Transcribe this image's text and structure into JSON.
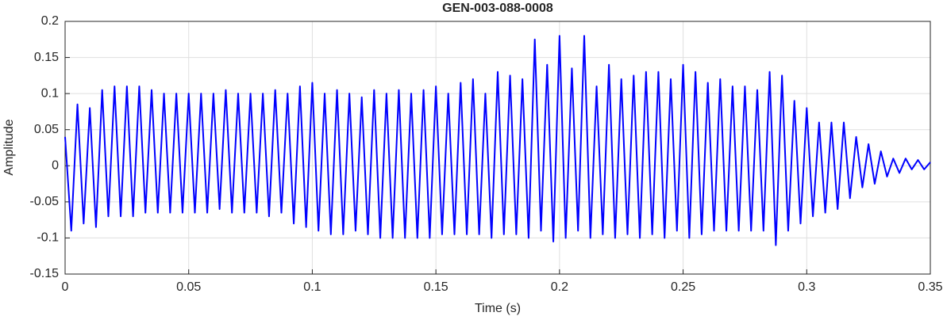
{
  "chart_data": {
    "type": "line",
    "title": "GEN-003-088-0008",
    "x_label": "Time (s)",
    "y_label": "Amplitude",
    "x": [
      0,
      0.0025,
      0.005,
      0.0075,
      0.01,
      0.0125,
      0.015,
      0.0175,
      0.02,
      0.0225,
      0.025,
      0.0275,
      0.03,
      0.0325,
      0.035,
      0.0375,
      0.04,
      0.0425,
      0.045,
      0.0475,
      0.05,
      0.0525,
      0.055,
      0.0575,
      0.06,
      0.0625,
      0.065,
      0.0675,
      0.07,
      0.0725,
      0.075,
      0.0775,
      0.08,
      0.0825,
      0.085,
      0.0875,
      0.09,
      0.0925,
      0.095,
      0.0975,
      0.1,
      0.1025,
      0.105,
      0.1075,
      0.11,
      0.1125,
      0.115,
      0.1175,
      0.12,
      0.1225,
      0.125,
      0.1275,
      0.13,
      0.1325,
      0.135,
      0.1375,
      0.14,
      0.1425,
      0.145,
      0.1475,
      0.15,
      0.1525,
      0.155,
      0.1575,
      0.16,
      0.1625,
      0.165,
      0.1675,
      0.17,
      0.1725,
      0.175,
      0.1775,
      0.18,
      0.1825,
      0.185,
      0.1875,
      0.19,
      0.1925,
      0.195,
      0.1975,
      0.2,
      0.2025,
      0.205,
      0.2075,
      0.21,
      0.2125,
      0.215,
      0.2175,
      0.22,
      0.2225,
      0.225,
      0.2275,
      0.23,
      0.2325,
      0.235,
      0.2375,
      0.24,
      0.2425,
      0.245,
      0.2475,
      0.25,
      0.2525,
      0.255,
      0.2575,
      0.26,
      0.2625,
      0.265,
      0.2675,
      0.27,
      0.2725,
      0.275,
      0.2775,
      0.28,
      0.2825,
      0.285,
      0.2875,
      0.29,
      0.2925,
      0.295,
      0.2975,
      0.3,
      0.3025,
      0.305,
      0.3075,
      0.31,
      0.3125,
      0.315,
      0.3175,
      0.32,
      0.3225,
      0.325,
      0.3275,
      0.33,
      0.3325,
      0.335,
      0.3375,
      0.34,
      0.3425,
      0.345,
      0.3475,
      0.35
    ],
    "series": [
      {
        "name": "Amplitude",
        "color": "#0000ff",
        "values": [
          0.04,
          -0.09,
          0.085,
          -0.08,
          0.08,
          -0.085,
          0.105,
          -0.07,
          0.11,
          -0.07,
          0.11,
          -0.07,
          0.11,
          -0.065,
          0.105,
          -0.065,
          0.1,
          -0.065,
          0.1,
          -0.065,
          0.1,
          -0.065,
          0.1,
          -0.065,
          0.1,
          -0.06,
          0.105,
          -0.065,
          0.1,
          -0.065,
          0.1,
          -0.065,
          0.1,
          -0.07,
          0.105,
          -0.065,
          0.1,
          -0.08,
          0.11,
          -0.085,
          0.115,
          -0.09,
          0.1,
          -0.095,
          0.105,
          -0.095,
          0.1,
          -0.09,
          0.095,
          -0.095,
          0.105,
          -0.1,
          0.1,
          -0.1,
          0.105,
          -0.1,
          0.1,
          -0.1,
          0.105,
          -0.1,
          0.11,
          -0.095,
          0.1,
          -0.095,
          0.115,
          -0.095,
          0.12,
          -0.095,
          0.1,
          -0.1,
          0.13,
          -0.095,
          0.125,
          -0.095,
          0.12,
          -0.1,
          0.175,
          -0.09,
          0.14,
          -0.105,
          0.18,
          -0.1,
          0.135,
          -0.09,
          0.18,
          -0.1,
          0.11,
          -0.095,
          0.14,
          -0.1,
          0.12,
          -0.095,
          0.125,
          -0.1,
          0.13,
          -0.095,
          0.13,
          -0.1,
          0.12,
          -0.09,
          0.14,
          -0.1,
          0.13,
          -0.095,
          0.115,
          -0.09,
          0.12,
          -0.09,
          0.11,
          -0.09,
          0.11,
          -0.09,
          0.105,
          -0.09,
          0.13,
          -0.11,
          0.125,
          -0.09,
          0.09,
          -0.08,
          0.08,
          -0.07,
          0.06,
          -0.065,
          0.06,
          -0.06,
          0.06,
          -0.045,
          0.04,
          -0.03,
          0.03,
          -0.025,
          0.02,
          -0.015,
          0.01,
          -0.01,
          0.01,
          -0.005,
          0.008,
          -0.005,
          0.005
        ]
      }
    ],
    "xlim": [
      0,
      0.35
    ],
    "xticks": [
      0,
      0.05,
      0.1,
      0.15,
      0.2,
      0.25,
      0.3,
      0.35
    ],
    "ylim": [
      -0.15,
      0.2
    ],
    "yticks": [
      -0.15,
      -0.1,
      -0.05,
      0,
      0.05,
      0.1,
      0.15,
      0.2
    ],
    "grid": true
  }
}
